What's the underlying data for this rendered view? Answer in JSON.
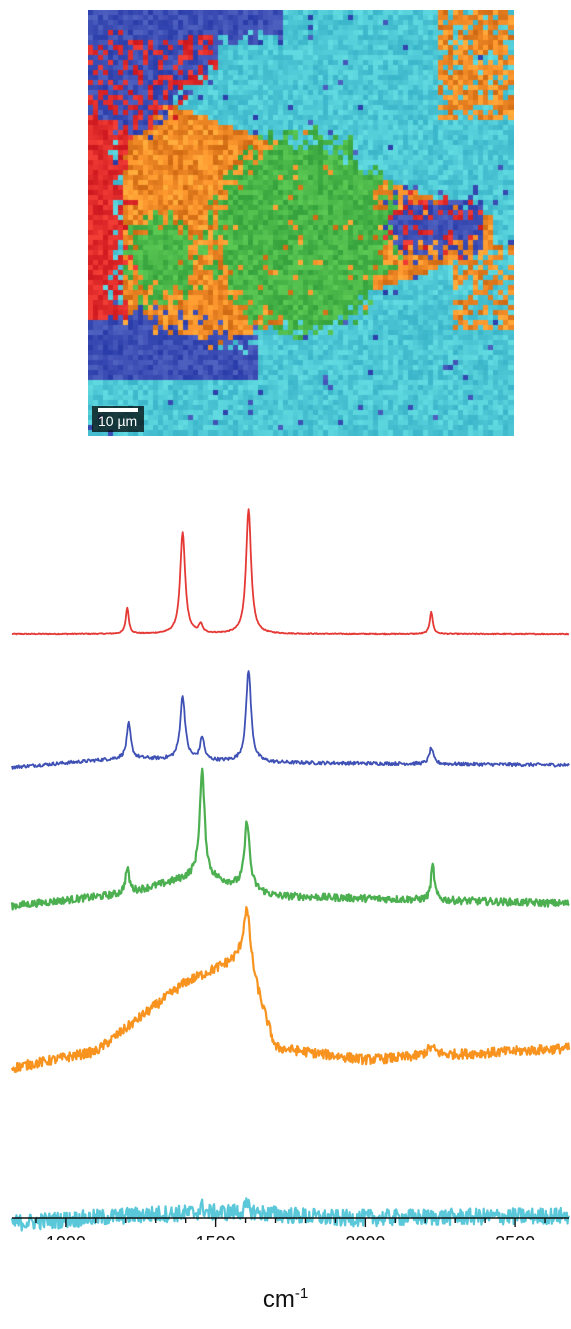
{
  "map": {
    "scale_bar_label": "10 µm",
    "cluster_colors": [
      "#e02b2b",
      "#3d4fb5",
      "#49b649",
      "#f28c28",
      "#4fc9d6"
    ]
  },
  "chart_data": {
    "type": "line",
    "xlabel": "cm",
    "xlabel_superscript": "-1",
    "xlim": [
      820,
      2680
    ],
    "xticks": [
      1000,
      1500,
      2000,
      2500
    ],
    "y_axis_shown": false,
    "grid": false,
    "layout": "stacked-offset",
    "series": [
      {
        "color": "#e53935",
        "baseline_slope": [
          [
            820,
            0.0
          ],
          [
            2680,
            0.0
          ]
        ],
        "noise": 0.004,
        "peaks": [
          [
            1205,
            0.21,
            6
          ],
          [
            1390,
            0.81,
            10
          ],
          [
            1450,
            0.07,
            7
          ],
          [
            1610,
            1.0,
            10
          ],
          [
            2220,
            0.18,
            6
          ]
        ]
      },
      {
        "color": "#3f51b5",
        "baseline_slope": [
          [
            820,
            -0.02
          ],
          [
            1200,
            0.06
          ],
          [
            1700,
            0.02
          ],
          [
            2680,
            0.0
          ]
        ],
        "noise": 0.015,
        "peaks": [
          [
            1210,
            0.3,
            8
          ],
          [
            1390,
            0.55,
            10
          ],
          [
            1455,
            0.2,
            8
          ],
          [
            1610,
            0.8,
            10
          ],
          [
            2220,
            0.14,
            8
          ]
        ]
      },
      {
        "color": "#4caf50",
        "baseline_slope": [
          [
            820,
            0.0
          ],
          [
            1200,
            0.1
          ],
          [
            1440,
            0.25
          ],
          [
            1700,
            0.08
          ],
          [
            2680,
            0.02
          ]
        ],
        "noise": 0.03,
        "peaks": [
          [
            1205,
            0.2,
            8
          ],
          [
            1455,
            0.85,
            10
          ],
          [
            1605,
            0.55,
            10
          ],
          [
            2225,
            0.28,
            7
          ]
        ]
      },
      {
        "color": "#f7931e",
        "baseline_slope": [
          [
            820,
            0.0
          ],
          [
            1100,
            0.1
          ],
          [
            1400,
            0.52
          ],
          [
            1600,
            0.68
          ],
          [
            1700,
            0.12
          ],
          [
            2000,
            0.05
          ],
          [
            2680,
            0.12
          ]
        ],
        "noise": 0.03,
        "peaks": [
          [
            1605,
            0.3,
            14
          ],
          [
            2220,
            0.05,
            20
          ]
        ]
      },
      {
        "color": "#5bc8d9",
        "baseline_slope": [
          [
            820,
            0.0
          ],
          [
            1300,
            0.15
          ],
          [
            1600,
            0.18
          ],
          [
            1900,
            0.08
          ],
          [
            2680,
            0.12
          ]
        ],
        "noise": 0.14,
        "peaks": [
          [
            1455,
            0.1,
            8
          ],
          [
            1605,
            0.1,
            10
          ]
        ]
      }
    ]
  }
}
